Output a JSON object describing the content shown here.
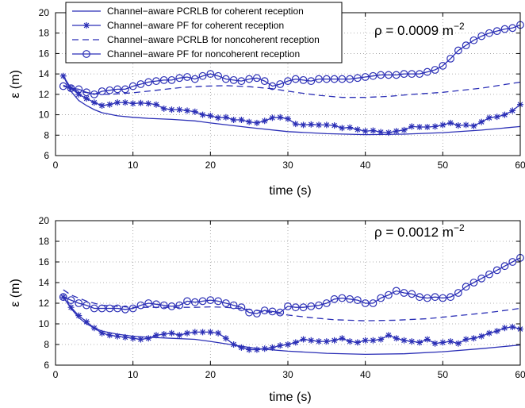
{
  "chart_data": [
    {
      "type": "line",
      "annotation": "ρ = 0.0009 m",
      "annotation_sup": "−2",
      "xlabel": "time (s)",
      "ylabel": "ε (m)",
      "xlim": [
        0,
        60
      ],
      "ylim": [
        6,
        20
      ],
      "xticks": [
        0,
        10,
        20,
        30,
        40,
        50,
        60
      ],
      "yticks": [
        6,
        8,
        10,
        12,
        14,
        16,
        18,
        20
      ],
      "grid": true,
      "legend_position": "top-left",
      "series": [
        {
          "name": "Channel−aware PCRLB for coherent reception",
          "style": "solid",
          "marker": "none",
          "x": [
            1,
            2,
            3,
            4,
            5,
            6,
            8,
            10,
            12,
            15,
            18,
            20,
            25,
            30,
            35,
            40,
            45,
            50,
            55,
            60
          ],
          "values": [
            13.8,
            12.3,
            11.4,
            10.9,
            10.5,
            10.2,
            9.9,
            9.75,
            9.65,
            9.55,
            9.4,
            9.2,
            8.75,
            8.35,
            8.15,
            8.05,
            8.1,
            8.25,
            8.5,
            8.85
          ]
        },
        {
          "name": "Channel−aware PF for coherent reception",
          "style": "solid",
          "marker": "star",
          "x": [
            1,
            2,
            3,
            4,
            5,
            6,
            7,
            8,
            9,
            10,
            11,
            12,
            13,
            14,
            15,
            16,
            17,
            18,
            19,
            20,
            21,
            22,
            23,
            24,
            25,
            26,
            27,
            28,
            29,
            30,
            31,
            32,
            33,
            34,
            35,
            36,
            37,
            38,
            39,
            40,
            41,
            42,
            43,
            44,
            45,
            46,
            47,
            48,
            49,
            50,
            51,
            52,
            53,
            54,
            55,
            56,
            57,
            58,
            59,
            60
          ],
          "values": [
            13.8,
            12.6,
            12.0,
            11.6,
            11.2,
            10.9,
            11.0,
            11.2,
            11.2,
            11.1,
            11.15,
            11.1,
            11.0,
            10.6,
            10.5,
            10.5,
            10.4,
            10.3,
            10.0,
            9.9,
            9.7,
            9.75,
            9.5,
            9.5,
            9.3,
            9.2,
            9.4,
            9.7,
            9.75,
            9.6,
            9.1,
            9.0,
            9.05,
            9.0,
            9.0,
            8.95,
            8.7,
            8.75,
            8.55,
            8.4,
            8.45,
            8.3,
            8.25,
            8.4,
            8.5,
            8.85,
            8.8,
            8.8,
            8.85,
            9.0,
            9.2,
            8.95,
            9.0,
            8.9,
            9.3,
            9.7,
            9.8,
            10.0,
            10.4,
            11.0
          ]
        },
        {
          "name": "Channel−aware PCRLB for noncoherent reception",
          "style": "dashed",
          "marker": "none",
          "x": [
            1,
            3,
            5,
            7,
            10,
            13,
            16,
            19,
            22,
            25,
            28,
            31,
            34,
            37,
            40,
            43,
            46,
            50,
            55,
            60
          ],
          "values": [
            12.9,
            12.3,
            12.05,
            12.0,
            12.15,
            12.4,
            12.65,
            12.8,
            12.85,
            12.75,
            12.55,
            12.2,
            11.9,
            11.7,
            11.7,
            11.8,
            12.0,
            12.2,
            12.6,
            13.2
          ]
        },
        {
          "name": "Channel−aware PF for noncoherent reception",
          "style": "solid",
          "marker": "circle",
          "x": [
            1,
            2,
            3,
            4,
            5,
            6,
            7,
            8,
            9,
            10,
            11,
            12,
            13,
            14,
            15,
            16,
            17,
            18,
            19,
            20,
            21,
            22,
            23,
            24,
            25,
            26,
            27,
            28,
            29,
            30,
            31,
            32,
            33,
            34,
            35,
            36,
            37,
            38,
            39,
            40,
            41,
            42,
            43,
            44,
            45,
            46,
            47,
            48,
            49,
            50,
            51,
            52,
            53,
            54,
            55,
            56,
            57,
            58,
            59,
            60
          ],
          "values": [
            12.8,
            12.6,
            12.5,
            12.2,
            12.0,
            12.3,
            12.4,
            12.5,
            12.5,
            12.8,
            13.0,
            13.2,
            13.3,
            13.4,
            13.4,
            13.6,
            13.7,
            13.5,
            13.8,
            14.0,
            13.8,
            13.5,
            13.4,
            13.3,
            13.5,
            13.6,
            13.3,
            12.8,
            13.0,
            13.3,
            13.5,
            13.4,
            13.3,
            13.5,
            13.5,
            13.5,
            13.5,
            13.5,
            13.6,
            13.7,
            13.8,
            13.9,
            13.9,
            13.9,
            14.0,
            14.0,
            14.0,
            14.2,
            14.4,
            14.8,
            15.5,
            16.3,
            16.8,
            17.3,
            17.7,
            18.0,
            18.2,
            18.4,
            18.5,
            18.8
          ]
        }
      ]
    },
    {
      "type": "line",
      "annotation": "ρ = 0.0012 m",
      "annotation_sup": "−2",
      "xlabel": "time (s)",
      "ylabel": "ε (m)",
      "xlim": [
        0,
        60
      ],
      "ylim": [
        6,
        20
      ],
      "xticks": [
        0,
        10,
        20,
        30,
        40,
        50,
        60
      ],
      "yticks": [
        6,
        8,
        10,
        12,
        14,
        16,
        18,
        20
      ],
      "grid": true,
      "series": [
        {
          "style": "solid",
          "marker": "none",
          "x": [
            1,
            2,
            3,
            4,
            5,
            6,
            8,
            10,
            12,
            15,
            18,
            20,
            23,
            26,
            30,
            35,
            40,
            45,
            50,
            55,
            60
          ],
          "values": [
            12.6,
            11.5,
            10.6,
            10.0,
            9.6,
            9.3,
            9.0,
            8.8,
            8.7,
            8.6,
            8.5,
            8.3,
            7.95,
            7.6,
            7.35,
            7.15,
            7.05,
            7.1,
            7.3,
            7.6,
            7.95
          ]
        },
        {
          "style": "solid",
          "marker": "star",
          "x": [
            1,
            2,
            3,
            4,
            5,
            6,
            7,
            8,
            9,
            10,
            11,
            12,
            13,
            14,
            15,
            16,
            17,
            18,
            19,
            20,
            21,
            22,
            23,
            24,
            25,
            26,
            27,
            28,
            29,
            30,
            31,
            32,
            33,
            34,
            35,
            36,
            37,
            38,
            39,
            40,
            41,
            42,
            43,
            44,
            45,
            46,
            47,
            48,
            49,
            50,
            51,
            52,
            53,
            54,
            55,
            56,
            57,
            58,
            59,
            60
          ],
          "values": [
            12.6,
            11.6,
            10.8,
            10.2,
            9.6,
            9.1,
            8.9,
            8.8,
            8.7,
            8.6,
            8.5,
            8.6,
            8.9,
            9.0,
            9.1,
            8.9,
            9.1,
            9.2,
            9.2,
            9.2,
            9.1,
            8.6,
            8.0,
            7.7,
            7.5,
            7.5,
            7.6,
            7.7,
            7.9,
            8.0,
            8.2,
            8.5,
            8.4,
            8.3,
            8.3,
            8.4,
            8.6,
            8.3,
            8.2,
            8.4,
            8.4,
            8.5,
            8.9,
            8.6,
            8.4,
            8.3,
            8.2,
            8.5,
            8.1,
            8.2,
            8.3,
            8.1,
            8.5,
            8.6,
            8.8,
            9.1,
            9.3,
            9.6,
            9.7,
            9.5
          ]
        },
        {
          "style": "dashed",
          "marker": "none",
          "x": [
            1,
            2,
            4,
            6,
            10,
            14,
            18,
            20,
            22,
            25,
            28,
            30,
            33,
            36,
            40,
            44,
            48,
            52,
            56,
            60
          ],
          "values": [
            13.3,
            12.8,
            12.2,
            11.8,
            11.6,
            11.6,
            11.6,
            11.65,
            11.6,
            11.4,
            11.1,
            10.85,
            10.6,
            10.4,
            10.3,
            10.35,
            10.5,
            10.8,
            11.1,
            11.5
          ]
        },
        {
          "style": "solid",
          "marker": "circle",
          "x": [
            1,
            2,
            3,
            4,
            5,
            6,
            7,
            8,
            9,
            10,
            11,
            12,
            13,
            14,
            15,
            16,
            17,
            18,
            19,
            20,
            21,
            22,
            23,
            24,
            25,
            26,
            27,
            28,
            29,
            30,
            31,
            32,
            33,
            34,
            35,
            36,
            37,
            38,
            39,
            40,
            41,
            42,
            43,
            44,
            45,
            46,
            47,
            48,
            49,
            50,
            51,
            52,
            53,
            54,
            55,
            56,
            57,
            58,
            59,
            60
          ],
          "values": [
            12.6,
            12.3,
            12.0,
            11.8,
            11.5,
            11.5,
            11.5,
            11.5,
            11.4,
            11.5,
            11.8,
            12.0,
            11.9,
            11.8,
            11.7,
            11.8,
            12.2,
            12.1,
            12.2,
            12.3,
            12.2,
            12.0,
            11.8,
            11.6,
            11.1,
            11.0,
            11.3,
            11.2,
            11.1,
            11.7,
            11.6,
            11.6,
            11.7,
            11.8,
            12.0,
            12.4,
            12.5,
            12.4,
            12.3,
            12.0,
            12.0,
            12.5,
            12.8,
            13.2,
            13.0,
            12.9,
            12.6,
            12.5,
            12.6,
            12.5,
            12.6,
            13.0,
            13.6,
            14.0,
            14.4,
            14.8,
            15.2,
            15.6,
            16.0,
            16.4
          ]
        }
      ]
    }
  ],
  "colors": {
    "line": "#2b2fb6",
    "grid": "#9a9a9a",
    "axis": "#000000"
  }
}
